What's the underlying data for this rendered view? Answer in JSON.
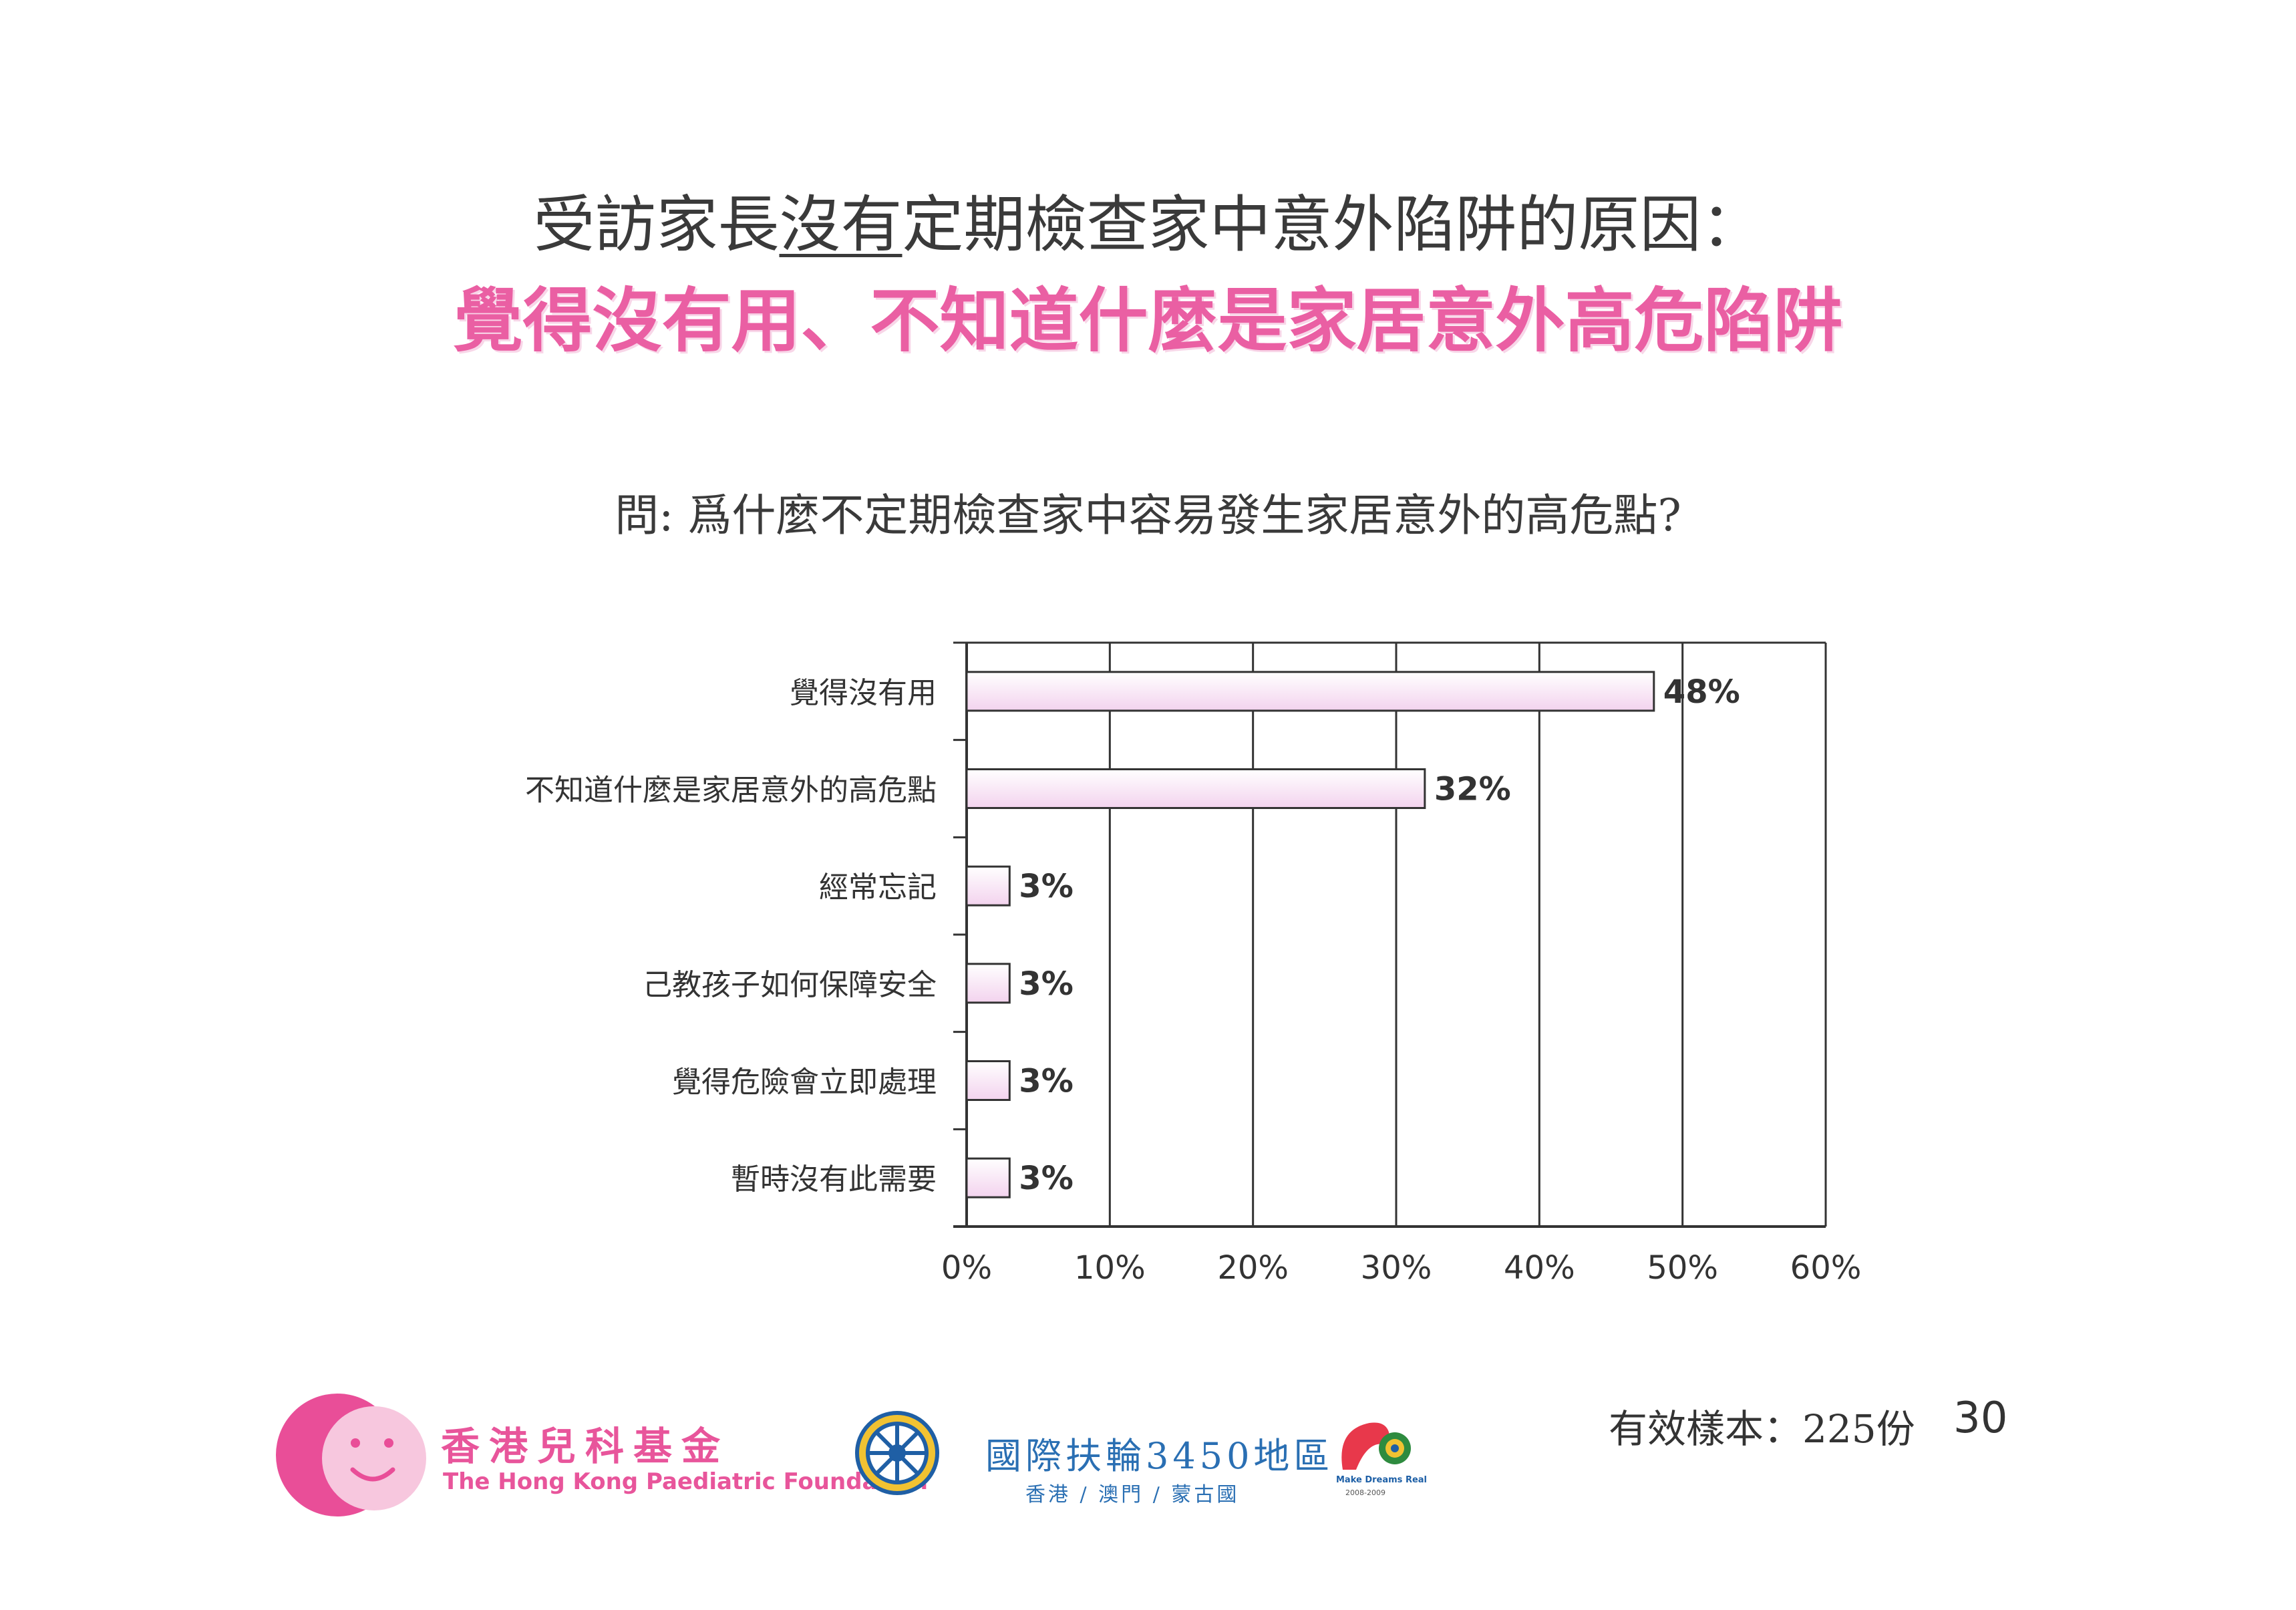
{
  "header": {
    "title_part1": "受訪家長",
    "title_underlined": "沒有",
    "title_part2": "定期檢查家中意外陷阱的原因：",
    "subtitle": "覺得沒有用、不知道什麼是家居意外高危陷阱"
  },
  "chart_data": {
    "type": "bar",
    "orientation": "horizontal",
    "title": "問: 爲什麼不定期檢查家中容易發生家居意外的高危點?",
    "categories": [
      "覺得沒有用",
      "不知道什麼是家居意外的高危點",
      "經常忘記",
      "己教孩子如何保障安全",
      "覺得危險會立即處理",
      "暫時沒有此需要"
    ],
    "values": [
      48,
      32,
      3,
      3,
      3,
      3
    ],
    "value_labels": [
      "48%",
      "32%",
      "3%",
      "3%",
      "3%",
      "3%"
    ],
    "x_ticks": [
      "0%",
      "10%",
      "20%",
      "30%",
      "40%",
      "50%",
      "60%"
    ],
    "xlim": [
      0,
      60
    ],
    "grid": true,
    "bar_fill_colors": [
      "#ffffff",
      "#f3d3ee"
    ],
    "bar_edge_color": "#333333"
  },
  "footer": {
    "sample_text": "有效樣本：225份",
    "page_number": "30",
    "logo1_zh": "香港兒科基金",
    "logo1_en": "The Hong Kong Paediatric Foundation",
    "logo2_zh": "國際扶輪3450地區",
    "logo2_sub": "香港 / 澳門 / 蒙古國",
    "logo3_text": "Make Dreams Real",
    "logo3_year": "2008-2009"
  }
}
